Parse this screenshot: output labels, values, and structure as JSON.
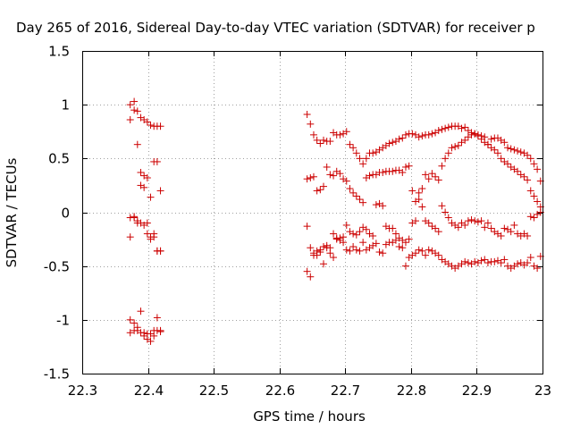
{
  "chart_data": {
    "type": "scatter",
    "title": "Day 265 of 2016, Sidereal Day-to-day VTEC variation (SDTVAR) for receiver p",
    "xlabel": "GPS time / hours",
    "ylabel": "SDTVAR / TECUs",
    "xlim": [
      22.3,
      23.0
    ],
    "ylim": [
      -1.5,
      1.5
    ],
    "xticks": [
      22.3,
      22.4,
      22.5,
      22.6,
      22.7,
      22.8,
      22.9,
      23.0
    ],
    "xtick_labels": [
      "22.3",
      "22.4",
      "22.5",
      "22.6",
      "22.7",
      "22.8",
      "22.9",
      "23"
    ],
    "yticks": [
      -1.5,
      -1.0,
      -0.5,
      0.0,
      0.5,
      1.0,
      1.5
    ],
    "ytick_labels": [
      "-1.5",
      "-1",
      "-0.5",
      "0",
      "0.5",
      "1",
      "1.5"
    ],
    "grid": true,
    "marker": "+",
    "color": "#cc0000",
    "series": [
      {
        "name": "SDTVAR",
        "x": [
          22.373,
          22.379,
          22.384,
          22.389,
          22.394,
          22.399,
          22.404,
          22.409,
          22.414,
          22.419,
          22.373,
          22.379,
          22.384,
          22.389,
          22.394,
          22.399,
          22.404,
          22.409,
          22.414,
          22.419,
          22.373,
          22.379,
          22.384,
          22.389,
          22.394,
          22.399,
          22.404,
          22.409,
          22.414,
          22.419,
          22.373,
          22.379,
          22.384,
          22.389,
          22.394,
          22.399,
          22.404,
          22.409,
          22.414,
          22.419,
          22.373,
          22.379,
          22.384,
          22.389,
          22.394,
          22.399,
          22.404,
          22.409,
          22.414,
          22.419,
          22.373,
          22.379,
          22.384,
          22.389,
          22.394,
          22.399,
          22.404,
          22.409,
          22.414,
          22.419,
          22.642,
          22.647,
          22.652,
          22.657,
          22.662,
          22.667,
          22.672,
          22.677,
          22.682,
          22.687,
          22.692,
          22.697,
          22.702,
          22.707,
          22.712,
          22.717,
          22.722,
          22.727,
          22.732,
          22.737,
          22.742,
          22.747,
          22.752,
          22.757,
          22.762,
          22.767,
          22.772,
          22.777,
          22.782,
          22.787,
          22.792,
          22.797,
          22.802,
          22.807,
          22.812,
          22.817,
          22.822,
          22.827,
          22.832,
          22.837,
          22.842,
          22.847,
          22.852,
          22.857,
          22.862,
          22.867,
          22.872,
          22.877,
          22.882,
          22.887,
          22.892,
          22.897,
          22.902,
          22.907,
          22.912,
          22.917,
          22.922,
          22.927,
          22.932,
          22.937,
          22.942,
          22.947,
          22.952,
          22.957,
          22.962,
          22.967,
          22.972,
          22.977,
          22.982,
          22.987,
          22.992,
          22.997,
          22.642,
          22.647,
          22.652,
          22.657,
          22.662,
          22.667,
          22.672,
          22.677,
          22.682,
          22.687,
          22.692,
          22.697,
          22.702,
          22.707,
          22.712,
          22.717,
          22.722,
          22.727,
          22.732,
          22.737,
          22.742,
          22.747,
          22.752,
          22.757,
          22.762,
          22.767,
          22.772,
          22.777,
          22.782,
          22.787,
          22.792,
          22.797,
          22.802,
          22.807,
          22.812,
          22.817,
          22.822,
          22.827,
          22.832,
          22.837,
          22.842,
          22.847,
          22.852,
          22.857,
          22.862,
          22.867,
          22.872,
          22.877,
          22.882,
          22.887,
          22.892,
          22.897,
          22.902,
          22.907,
          22.912,
          22.917,
          22.922,
          22.927,
          22.932,
          22.937,
          22.942,
          22.947,
          22.952,
          22.957,
          22.962,
          22.967,
          22.972,
          22.977,
          22.982,
          22.987,
          22.992,
          22.997,
          22.642,
          22.647,
          22.652,
          22.657,
          22.662,
          22.667,
          22.672,
          22.677,
          22.682,
          22.687,
          22.692,
          22.697,
          22.702,
          22.707,
          22.712,
          22.717,
          22.722,
          22.727,
          22.732,
          22.737,
          22.742,
          22.747,
          22.752,
          22.757,
          22.762,
          22.767,
          22.772,
          22.777,
          22.782,
          22.787,
          22.792,
          22.797,
          22.802,
          22.807,
          22.812,
          22.817,
          22.822,
          22.827,
          22.832,
          22.837,
          22.842,
          22.847,
          22.852,
          22.857,
          22.862,
          22.867,
          22.872,
          22.877,
          22.882,
          22.887,
          22.892,
          22.897,
          22.902,
          22.907,
          22.912,
          22.917,
          22.922,
          22.927,
          22.932,
          22.937,
          22.942,
          22.947,
          22.952,
          22.957,
          22.962,
          22.967,
          22.972,
          22.977,
          22.982,
          22.987,
          22.992,
          22.997,
          22.642,
          22.647,
          22.652,
          22.657,
          22.662,
          22.667,
          22.672,
          22.677,
          22.682,
          22.687,
          22.692,
          22.697,
          22.702,
          22.707,
          22.712,
          22.717,
          22.722,
          22.727,
          22.732,
          22.737,
          22.742,
          22.747,
          22.752,
          22.757,
          22.762,
          22.767,
          22.772,
          22.777,
          22.782,
          22.787,
          22.792,
          22.797,
          22.802,
          22.807,
          22.812,
          22.817,
          22.822,
          22.827,
          22.832,
          22.837,
          22.842,
          22.847,
          22.852,
          22.857,
          22.862,
          22.867,
          22.872,
          22.877,
          22.882,
          22.887,
          22.892,
          22.897,
          22.902,
          22.907,
          22.912,
          22.917,
          22.922,
          22.927,
          22.932,
          22.937,
          22.942,
          22.947,
          22.952,
          22.957,
          22.962,
          22.967,
          22.972,
          22.977,
          22.982,
          22.987,
          22.992,
          22.997
        ],
        "y": [
          1.0,
          1.03,
          0.63,
          0.88,
          0.86,
          0.84,
          0.81,
          0.8,
          0.8,
          0.8,
          0.86,
          0.95,
          0.94,
          0.37,
          0.34,
          0.32,
          0.14,
          0.47,
          0.47,
          0.2,
          -0.05,
          -0.04,
          -0.08,
          0.25,
          0.23,
          -0.2,
          -0.25,
          -0.2,
          -0.36,
          -0.36,
          -0.23,
          -0.05,
          -0.1,
          -0.1,
          -0.12,
          -0.1,
          -0.23,
          -0.23,
          -0.36,
          -0.36,
          -1.0,
          -1.03,
          -1.07,
          -0.92,
          -1.15,
          -1.18,
          -1.2,
          -1.15,
          -0.98,
          -1.1,
          -1.12,
          -1.1,
          -1.1,
          -1.12,
          -1.12,
          -1.13,
          -1.13,
          -1.1,
          -1.1,
          -1.11,
          0.91,
          0.82,
          0.72,
          0.67,
          0.64,
          0.67,
          0.66,
          0.66,
          0.74,
          0.72,
          0.72,
          0.73,
          0.75,
          0.63,
          0.6,
          0.55,
          0.5,
          0.45,
          0.5,
          0.55,
          0.55,
          0.56,
          0.58,
          0.6,
          0.62,
          0.64,
          0.65,
          0.66,
          0.68,
          0.69,
          0.72,
          0.73,
          0.73,
          0.72,
          0.7,
          0.71,
          0.72,
          0.72,
          0.73,
          0.74,
          0.76,
          0.77,
          0.78,
          0.79,
          0.8,
          0.8,
          0.8,
          0.78,
          0.79,
          0.76,
          0.74,
          0.73,
          0.72,
          0.71,
          0.7,
          0.63,
          0.68,
          0.69,
          0.69,
          0.67,
          0.65,
          0.6,
          0.59,
          0.58,
          0.57,
          0.56,
          0.55,
          0.53,
          0.5,
          0.45,
          0.4,
          0.29,
          0.31,
          0.32,
          0.33,
          0.2,
          0.21,
          0.24,
          0.42,
          0.35,
          0.34,
          0.38,
          0.36,
          0.31,
          0.29,
          0.22,
          0.18,
          0.15,
          0.12,
          0.09,
          0.32,
          0.34,
          0.35,
          0.35,
          0.37,
          0.37,
          0.38,
          0.38,
          0.38,
          0.39,
          0.39,
          0.37,
          0.42,
          0.43,
          0.2,
          0.1,
          0.18,
          0.22,
          0.35,
          0.31,
          0.36,
          0.33,
          0.3,
          0.43,
          0.5,
          0.55,
          0.6,
          0.61,
          0.62,
          0.65,
          0.67,
          0.7,
          0.72,
          0.73,
          0.71,
          0.68,
          0.65,
          0.63,
          0.6,
          0.58,
          0.55,
          0.5,
          0.47,
          0.45,
          0.42,
          0.4,
          0.38,
          0.35,
          0.33,
          0.3,
          0.2,
          0.15,
          0.1,
          0.05,
          -0.13,
          -0.33,
          -0.38,
          -0.4,
          -0.35,
          -0.32,
          -0.33,
          -0.33,
          -0.2,
          -0.24,
          -0.26,
          -0.23,
          -0.12,
          -0.18,
          -0.2,
          -0.21,
          -0.18,
          -0.14,
          -0.16,
          -0.2,
          -0.22,
          0.07,
          0.08,
          0.06,
          -0.13,
          -0.15,
          -0.15,
          -0.2,
          -0.24,
          -0.26,
          -0.28,
          -0.25,
          -0.1,
          -0.08,
          0.12,
          0.05,
          -0.08,
          -0.1,
          -0.13,
          -0.15,
          -0.18,
          0.06,
          0.0,
          -0.05,
          -0.1,
          -0.12,
          -0.14,
          -0.1,
          -0.12,
          -0.08,
          -0.07,
          -0.08,
          -0.09,
          -0.08,
          -0.14,
          -0.1,
          -0.15,
          -0.18,
          -0.2,
          -0.22,
          -0.15,
          -0.16,
          -0.18,
          -0.12,
          -0.2,
          -0.22,
          -0.2,
          -0.22,
          -0.04,
          -0.05,
          -0.02,
          0.0,
          -0.55,
          -0.6,
          -0.4,
          -0.36,
          -0.37,
          -0.48,
          -0.31,
          -0.38,
          -0.42,
          -0.25,
          -0.24,
          -0.28,
          -0.35,
          -0.36,
          -0.32,
          -0.35,
          -0.36,
          -0.28,
          -0.35,
          -0.33,
          -0.31,
          -0.29,
          -0.37,
          -0.38,
          -0.3,
          -0.28,
          -0.28,
          -0.26,
          -0.32,
          -0.33,
          -0.5,
          -0.42,
          -0.4,
          -0.38,
          -0.35,
          -0.36,
          -0.4,
          -0.35,
          -0.36,
          -0.38,
          -0.4,
          -0.44,
          -0.46,
          -0.48,
          -0.5,
          -0.52,
          -0.5,
          -0.48,
          -0.46,
          -0.47,
          -0.48,
          -0.46,
          -0.47,
          -0.45,
          -0.44,
          -0.47,
          -0.46,
          -0.46,
          -0.45,
          -0.47,
          -0.44,
          -0.5,
          -0.52,
          -0.5,
          -0.48,
          -0.47,
          -0.49,
          -0.47,
          -0.42,
          -0.5,
          -0.52,
          -0.41
        ]
      }
    ]
  }
}
